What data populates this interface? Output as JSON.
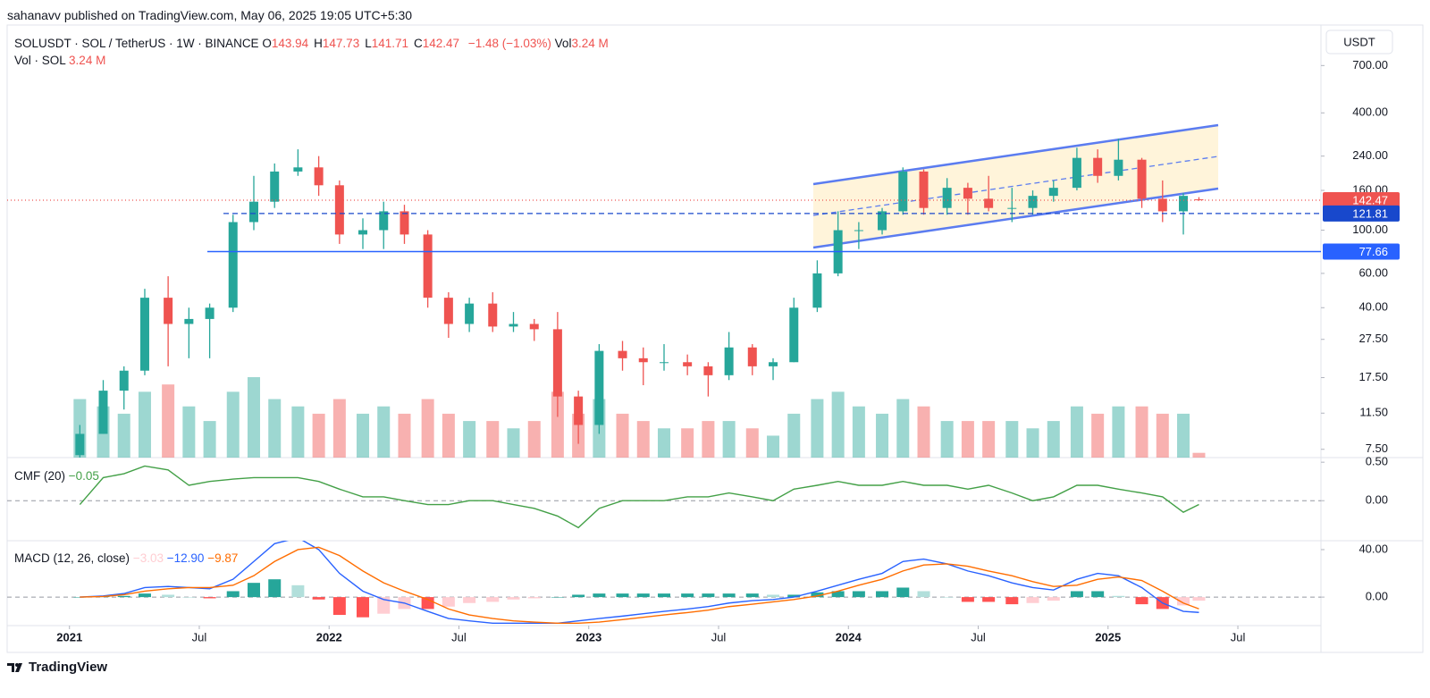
{
  "header": {
    "publisher": "sahanavv published on TradingView.com, May 06, 2025 19:05 UTC+5:30",
    "brand": "TradingView"
  },
  "chart_data": {
    "type": "candlestick",
    "legend": {
      "symbol": "SOLUSDT · SOL / TetherUS · 1W · BINANCE",
      "items": [
        {
          "key": "O",
          "value": "143.94"
        },
        {
          "key": "H",
          "value": "147.73"
        },
        {
          "key": "L",
          "value": "141.71"
        },
        {
          "key": "C",
          "value": "142.47"
        }
      ],
      "change": "−1.48 (−1.03%)",
      "vol_key": "Vol",
      "vol": "3.24 M",
      "vol_line_key": "Vol · SOL",
      "vol_line_value": "3.24 M"
    },
    "currency": "USDT",
    "log_scale": true,
    "grid": false,
    "up_color": "#26a69a",
    "down_color": "#ef5350",
    "x": [
      2021.04,
      2021.13,
      2021.21,
      2021.29,
      2021.38,
      2021.46,
      2021.54,
      2021.63,
      2021.71,
      2021.79,
      2021.88,
      2021.96,
      2022.04,
      2022.13,
      2022.21,
      2022.29,
      2022.38,
      2022.46,
      2022.54,
      2022.63,
      2022.71,
      2022.79,
      2022.88,
      2022.96,
      2023.04,
      2023.13,
      2023.21,
      2023.29,
      2023.38,
      2023.46,
      2023.54,
      2023.63,
      2023.71,
      2023.79,
      2023.88,
      2023.96,
      2024.04,
      2024.13,
      2024.21,
      2024.29,
      2024.38,
      2024.46,
      2024.54,
      2024.63,
      2024.71,
      2024.79,
      2024.88,
      2024.96,
      2025.04,
      2025.13,
      2025.21,
      2025.29,
      2025.35
    ],
    "open": [
      7,
      9,
      15,
      19,
      45,
      33,
      35,
      40,
      110,
      140,
      200,
      210,
      170,
      95,
      100,
      125,
      95,
      45,
      33,
      42,
      32,
      33,
      31,
      14,
      10,
      24,
      22,
      21,
      21,
      20,
      18,
      25,
      20,
      21,
      40,
      60,
      100,
      100,
      125,
      200,
      130,
      165,
      145,
      130,
      130,
      150,
      165,
      235,
      190,
      230,
      145,
      125,
      143.94
    ],
    "high": [
      10,
      17,
      20,
      50,
      58,
      40,
      42,
      120,
      190,
      220,
      260,
      240,
      180,
      115,
      140,
      135,
      100,
      48,
      45,
      48,
      38,
      35,
      38,
      15,
      26,
      27,
      25,
      26,
      23,
      21,
      30,
      26,
      22,
      45,
      70,
      125,
      110,
      130,
      210,
      205,
      185,
      175,
      190,
      165,
      160,
      180,
      265,
      260,
      295,
      235,
      180,
      155,
      147.73
    ],
    "low": [
      6.5,
      9,
      12,
      18,
      20,
      22,
      22,
      38,
      100,
      130,
      190,
      150,
      85,
      80,
      80,
      85,
      40,
      28,
      30,
      30,
      30,
      27,
      11,
      8,
      9,
      19,
      16,
      19,
      18,
      14,
      17,
      18,
      17,
      21,
      38,
      58,
      80,
      95,
      120,
      120,
      120,
      120,
      125,
      110,
      120,
      140,
      160,
      175,
      180,
      130,
      110,
      95,
      141.71
    ],
    "close": [
      9,
      15,
      19,
      45,
      33,
      35,
      40,
      110,
      140,
      200,
      210,
      170,
      95,
      100,
      125,
      95,
      45,
      33,
      42,
      32,
      33,
      31,
      14,
      10,
      24,
      22,
      21,
      21,
      20,
      18,
      25,
      20,
      21,
      40,
      60,
      100,
      100,
      125,
      200,
      130,
      165,
      145,
      130,
      130,
      150,
      165,
      235,
      190,
      230,
      145,
      125,
      150,
      142.47
    ],
    "volume": [
      40,
      35,
      30,
      45,
      50,
      35,
      25,
      45,
      55,
      40,
      35,
      30,
      40,
      30,
      35,
      30,
      40,
      30,
      25,
      25,
      20,
      25,
      45,
      30,
      40,
      30,
      25,
      20,
      20,
      25,
      25,
      20,
      15,
      30,
      40,
      45,
      35,
      30,
      40,
      35,
      25,
      25,
      25,
      25,
      20,
      25,
      35,
      30,
      35,
      35,
      30,
      30,
      3.24
    ],
    "xlim": [
      2020.76,
      2025.82
    ],
    "xticks": [
      {
        "value": 2021,
        "label": "2021"
      },
      {
        "value": 2021.5,
        "label": "Jul"
      },
      {
        "value": 2022,
        "label": "2022"
      },
      {
        "value": 2022.5,
        "label": "Jul"
      },
      {
        "value": 2023,
        "label": "2023"
      },
      {
        "value": 2023.5,
        "label": "Jul"
      },
      {
        "value": 2024,
        "label": "2024"
      },
      {
        "value": 2024.5,
        "label": "Jul"
      },
      {
        "value": 2025,
        "label": "2025"
      },
      {
        "value": 2025.5,
        "label": "Jul"
      }
    ],
    "ylim": [
      6.8,
      1130
    ],
    "yticks": [
      {
        "value": 700,
        "label": "700.00"
      },
      {
        "value": 400,
        "label": "400.00"
      },
      {
        "value": 240,
        "label": "240.00"
      },
      {
        "value": 160,
        "label": "160.00"
      },
      {
        "value": 100,
        "label": "100.00"
      },
      {
        "value": 60,
        "label": "60.00"
      },
      {
        "value": 40,
        "label": "40.00"
      },
      {
        "value": 27.5,
        "label": "27.50"
      },
      {
        "value": 17.5,
        "label": "17.50"
      },
      {
        "value": 11.5,
        "label": "11.50"
      },
      {
        "value": 7.5,
        "label": "7.50"
      }
    ],
    "price_lines": [
      {
        "value": 142.47,
        "color": "#ef5350",
        "style": "dotted"
      },
      {
        "value": 121.81,
        "color": "#1848cc",
        "style": "dashed"
      },
      {
        "value": 77.66,
        "color": "#2962ff",
        "style": "solid"
      }
    ],
    "cmf": {
      "title": "CMF (20)",
      "value_text": "−0.05",
      "color": "#43a047",
      "values": [
        -0.05,
        0.3,
        0.35,
        0.45,
        0.4,
        0.2,
        0.25,
        0.28,
        0.3,
        0.3,
        0.3,
        0.25,
        0.15,
        0.05,
        0.05,
        0,
        -0.05,
        -0.05,
        0,
        0,
        -0.05,
        -0.1,
        -0.2,
        -0.35,
        -0.1,
        0,
        0,
        0,
        0.05,
        0.05,
        0.1,
        0.05,
        0,
        0.15,
        0.2,
        0.25,
        0.2,
        0.2,
        0.25,
        0.2,
        0.2,
        0.15,
        0.2,
        0.1,
        0,
        0.05,
        0.2,
        0.2,
        0.15,
        0.1,
        0.05,
        -0.15,
        -0.05
      ],
      "ylim": [
        -0.52,
        0.56
      ],
      "yticks": [
        {
          "value": 0.5,
          "label": "0.50"
        },
        {
          "value": 0,
          "label": "0.00"
        }
      ]
    },
    "macd": {
      "title": "MACD (12, 26, close)",
      "hist_text": "−3.03",
      "macd_text": "−12.90",
      "signal_text": "−9.87",
      "macd_color": "#2962ff",
      "signal_color": "#ff6d00",
      "hist_up": "#26a69a",
      "hist_up_fading": "#b2dfdb",
      "hist_down": "#ff5252",
      "hist_down_fading": "#ffcdd2",
      "macd_values": [
        0,
        1,
        3,
        8,
        9,
        8,
        7,
        15,
        30,
        45,
        50,
        40,
        20,
        5,
        -2,
        -5,
        -12,
        -18,
        -20,
        -22,
        -22,
        -22,
        -22,
        -20,
        -18,
        -16,
        -14,
        -12,
        -10,
        -8,
        -5,
        -3,
        -2,
        0,
        5,
        10,
        15,
        20,
        30,
        32,
        28,
        22,
        18,
        12,
        8,
        6,
        15,
        20,
        18,
        8,
        -5,
        -12,
        -12.9
      ],
      "signal_values": [
        0,
        0.5,
        2,
        5,
        7,
        8,
        8,
        10,
        18,
        30,
        40,
        42,
        35,
        22,
        12,
        5,
        -2,
        -10,
        -15,
        -18,
        -20,
        -21,
        -22,
        -22,
        -21,
        -19,
        -17,
        -15,
        -13,
        -11,
        -8,
        -6,
        -4,
        -2,
        1,
        5,
        10,
        15,
        22,
        27,
        28,
        26,
        22,
        18,
        13,
        9,
        10,
        15,
        17,
        14,
        5,
        -5,
        -9.87
      ],
      "hist_values": [
        0,
        0.5,
        1,
        3,
        2,
        0,
        -1,
        5,
        12,
        15,
        10,
        -2,
        -15,
        -17,
        -14,
        -10,
        -10,
        -8,
        -5,
        -4,
        -2,
        -1,
        0,
        2,
        3,
        3,
        3,
        3,
        3,
        3,
        3,
        3,
        2,
        2,
        4,
        5,
        5,
        5,
        8,
        5,
        0,
        -4,
        -4,
        -6,
        -5,
        -3,
        5,
        5,
        1,
        -6,
        -10,
        -7,
        -3.03
      ],
      "ylim": [
        -24,
        47.5
      ],
      "yticks": [
        {
          "value": 40,
          "label": "40.00"
        },
        {
          "value": 0,
          "label": "0.00"
        }
      ]
    }
  }
}
